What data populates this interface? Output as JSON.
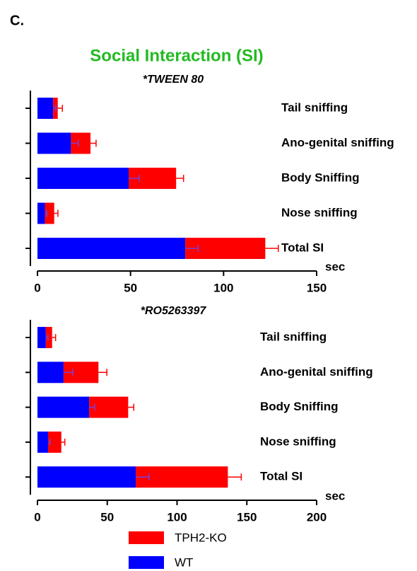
{
  "heading": "C.",
  "chart_data": [
    {
      "type": "bar",
      "orientation": "horizontal",
      "stacked": true,
      "title": "Social Interaction (SI)",
      "subtitle": "*TWEEN 80",
      "xlabel": "sec",
      "categories": [
        "Tail sniffing",
        "Ano-genital sniffing",
        "Body Sniffing",
        "Nose sniffing",
        "Total SI"
      ],
      "series": [
        {
          "color": "#0000ff",
          "values": [
            8.4,
            18,
            49,
            4,
            79.4
          ],
          "errors": [
            1.5,
            4,
            5.7,
            1,
            7
          ]
        },
        {
          "color": "#ff0000",
          "values": [
            2.5,
            10.5,
            25.5,
            5,
            43
          ],
          "errors": [
            2.5,
            3,
            4,
            2,
            7
          ]
        }
      ],
      "xlim": [
        0,
        150
      ],
      "xticks": [
        0,
        50,
        100,
        150
      ]
    },
    {
      "type": "bar",
      "orientation": "horizontal",
      "stacked": true,
      "subtitle": "*RO5263397",
      "xlabel": "sec",
      "categories": [
        "Tail sniffing",
        "Ano-genital sniffing",
        "Body Sniffing",
        "Nose sniffing",
        "Total SI"
      ],
      "series": [
        {
          "name": "WT",
          "color": "#0000ff",
          "values": [
            6,
            18.7,
            37,
            7.6,
            70.4
          ],
          "errors": [
            1.5,
            6.5,
            4,
            1.5,
            9.6
          ]
        },
        {
          "name": "TPH2-KO",
          "color": "#ff0000",
          "values": [
            4.5,
            25,
            28,
            9.5,
            66
          ],
          "errors": [
            2.5,
            6,
            4,
            2.5,
            9.6
          ]
        }
      ],
      "xlim": [
        0,
        200
      ],
      "xticks": [
        0,
        50,
        100,
        150,
        200
      ]
    }
  ]
}
